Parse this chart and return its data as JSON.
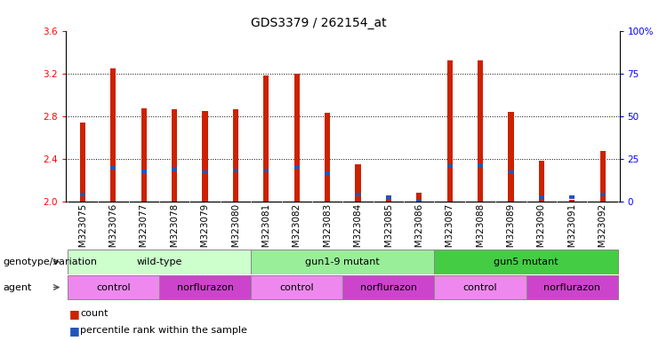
{
  "title": "GDS3379 / 262154_at",
  "samples": [
    "GSM323075",
    "GSM323076",
    "GSM323077",
    "GSM323078",
    "GSM323079",
    "GSM323080",
    "GSM323081",
    "GSM323082",
    "GSM323083",
    "GSM323084",
    "GSM323085",
    "GSM323086",
    "GSM323087",
    "GSM323088",
    "GSM323089",
    "GSM323090",
    "GSM323091",
    "GSM323092"
  ],
  "count_values": [
    2.74,
    3.25,
    2.87,
    2.86,
    2.85,
    2.86,
    3.18,
    3.2,
    2.83,
    2.35,
    2.02,
    2.08,
    3.32,
    3.32,
    2.84,
    2.38,
    2.01,
    2.47
  ],
  "percentile_values": [
    2.06,
    2.31,
    2.28,
    2.3,
    2.27,
    2.29,
    2.29,
    2.32,
    2.26,
    2.06,
    2.04,
    2.0,
    2.33,
    2.34,
    2.27,
    2.04,
    2.04,
    2.06
  ],
  "ymin": 2.0,
  "ymax": 3.6,
  "yticks_left": [
    2.0,
    2.4,
    2.8,
    3.2,
    3.6
  ],
  "yticks_right_labels": [
    "100%",
    "75",
    "50",
    "25",
    "0"
  ],
  "yticks_right_positions": [
    3.6,
    3.2,
    2.8,
    2.4,
    2.0
  ],
  "bar_color": "#cc2200",
  "percentile_color": "#2255bb",
  "bar_width": 0.18,
  "genotype_groups": [
    {
      "label": "wild-type",
      "start": 0,
      "end": 5,
      "color": "#ccffcc"
    },
    {
      "label": "gun1-9 mutant",
      "start": 6,
      "end": 11,
      "color": "#99ee99"
    },
    {
      "label": "gun5 mutant",
      "start": 12,
      "end": 17,
      "color": "#44cc44"
    }
  ],
  "agent_groups": [
    {
      "label": "control",
      "start": 0,
      "end": 2,
      "color": "#ee88ee"
    },
    {
      "label": "norflurazon",
      "start": 3,
      "end": 5,
      "color": "#cc44cc"
    },
    {
      "label": "control",
      "start": 6,
      "end": 8,
      "color": "#ee88ee"
    },
    {
      "label": "norflurazon",
      "start": 9,
      "end": 11,
      "color": "#cc44cc"
    },
    {
      "label": "control",
      "start": 12,
      "end": 14,
      "color": "#ee88ee"
    },
    {
      "label": "norflurazon",
      "start": 15,
      "end": 17,
      "color": "#cc44cc"
    }
  ],
  "tick_fontsize": 7.5,
  "label_fontsize": 8,
  "legend_count_color": "#cc2200",
  "legend_pct_color": "#2255bb",
  "xtick_bg_color": "#cccccc",
  "geno_border_color": "#888888",
  "agent_border_color": "#888888"
}
